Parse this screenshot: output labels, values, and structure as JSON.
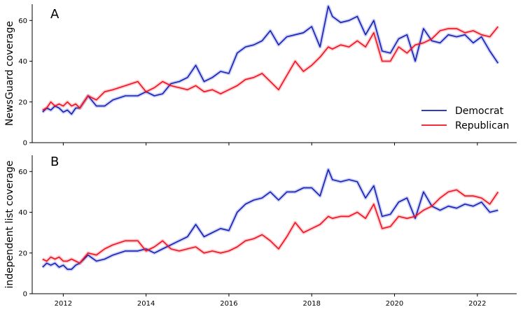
{
  "chart_data": [
    {
      "type": "line",
      "panel_label": "A",
      "ylabel": "NewsGuard coverage",
      "xlabel": "",
      "xlim": [
        2011.25,
        2022.95
      ],
      "ylim": [
        0,
        68
      ],
      "yticks": [
        0,
        20,
        40,
        60
      ],
      "xticks": [
        2012,
        2014,
        2016,
        2018,
        2020,
        2022
      ],
      "show_xtick_labels": false,
      "grid": false,
      "legend": {
        "placement": "right",
        "entries": [
          "Democrat",
          "Republican"
        ]
      },
      "series": [
        {
          "name": "Democrat",
          "color": "#1420b4",
          "x": [
            2011.5,
            2011.6,
            2011.7,
            2011.8,
            2011.9,
            2012.0,
            2012.1,
            2012.2,
            2012.3,
            2012.4,
            2012.6,
            2012.8,
            2013.0,
            2013.2,
            2013.5,
            2013.8,
            2014.0,
            2014.2,
            2014.4,
            2014.6,
            2014.8,
            2015.0,
            2015.2,
            2015.4,
            2015.6,
            2015.8,
            2016.0,
            2016.2,
            2016.4,
            2016.6,
            2016.8,
            2017.0,
            2017.2,
            2017.4,
            2017.6,
            2017.8,
            2018.0,
            2018.2,
            2018.4,
            2018.5,
            2018.7,
            2018.9,
            2019.1,
            2019.3,
            2019.5,
            2019.7,
            2019.9,
            2020.1,
            2020.3,
            2020.5,
            2020.7,
            2020.9,
            2021.1,
            2021.3,
            2021.5,
            2021.7,
            2021.9,
            2022.1,
            2022.3,
            2022.5
          ],
          "values": [
            15,
            17,
            16,
            18,
            17,
            15,
            16,
            14,
            17,
            17,
            23,
            18,
            18,
            21,
            23,
            23,
            25,
            23,
            24,
            29,
            30,
            32,
            38,
            30,
            32,
            35,
            34,
            44,
            47,
            48,
            50,
            55,
            48,
            52,
            53,
            54,
            57,
            47,
            67,
            62,
            59,
            60,
            62,
            53,
            60,
            45,
            44,
            51,
            53,
            40,
            56,
            50,
            49,
            53,
            52,
            53,
            49,
            52,
            45,
            39
          ]
        },
        {
          "name": "Republican",
          "color": "#f01020",
          "x": [
            2011.5,
            2011.6,
            2011.7,
            2011.8,
            2011.9,
            2012.0,
            2012.1,
            2012.2,
            2012.3,
            2012.4,
            2012.6,
            2012.8,
            2013.0,
            2013.2,
            2013.5,
            2013.8,
            2014.0,
            2014.2,
            2014.4,
            2014.6,
            2014.8,
            2015.0,
            2015.2,
            2015.4,
            2015.6,
            2015.8,
            2016.0,
            2016.2,
            2016.4,
            2016.6,
            2016.8,
            2017.0,
            2017.2,
            2017.4,
            2017.6,
            2017.8,
            2018.0,
            2018.2,
            2018.4,
            2018.5,
            2018.7,
            2018.9,
            2019.1,
            2019.3,
            2019.5,
            2019.7,
            2019.9,
            2020.1,
            2020.3,
            2020.5,
            2020.7,
            2020.9,
            2021.1,
            2021.3,
            2021.5,
            2021.7,
            2021.9,
            2022.1,
            2022.3,
            2022.5
          ],
          "values": [
            16,
            17,
            20,
            18,
            19,
            18,
            20,
            18,
            19,
            17,
            23,
            21,
            25,
            26,
            28,
            30,
            25,
            27,
            30,
            28,
            27,
            26,
            28,
            25,
            26,
            24,
            26,
            28,
            31,
            32,
            34,
            30,
            26,
            33,
            40,
            35,
            38,
            42,
            47,
            46,
            48,
            47,
            50,
            47,
            54,
            40,
            40,
            47,
            44,
            48,
            49,
            51,
            55,
            56,
            56,
            54,
            55,
            53,
            52,
            57
          ]
        }
      ]
    },
    {
      "type": "line",
      "panel_label": "B",
      "ylabel": "independent list coverage",
      "xlabel": "",
      "xlim": [
        2011.25,
        2022.95
      ],
      "ylim": [
        0,
        68
      ],
      "yticks": [
        0,
        20,
        40,
        60
      ],
      "xticks": [
        2012,
        2014,
        2016,
        2018,
        2020,
        2022
      ],
      "xtick_labels": [
        "2012",
        "2014",
        "2016",
        "2018",
        "2020",
        "2022"
      ],
      "grid": false,
      "series": [
        {
          "name": "Democrat",
          "color": "#1420b4",
          "x": [
            2011.5,
            2011.6,
            2011.7,
            2011.8,
            2011.9,
            2012.0,
            2012.1,
            2012.2,
            2012.3,
            2012.4,
            2012.6,
            2012.8,
            2013.0,
            2013.2,
            2013.5,
            2013.8,
            2014.0,
            2014.2,
            2014.4,
            2014.6,
            2014.8,
            2015.0,
            2015.2,
            2015.4,
            2015.6,
            2015.8,
            2016.0,
            2016.2,
            2016.4,
            2016.6,
            2016.8,
            2017.0,
            2017.2,
            2017.4,
            2017.6,
            2017.8,
            2018.0,
            2018.2,
            2018.4,
            2018.5,
            2018.7,
            2018.9,
            2019.1,
            2019.3,
            2019.5,
            2019.7,
            2019.9,
            2020.1,
            2020.3,
            2020.5,
            2020.7,
            2020.9,
            2021.1,
            2021.3,
            2021.5,
            2021.7,
            2021.9,
            2022.1,
            2022.3,
            2022.5
          ],
          "values": [
            13,
            15,
            14,
            15,
            13,
            14,
            12,
            12,
            14,
            15,
            19,
            16,
            17,
            19,
            21,
            21,
            22,
            20,
            22,
            24,
            26,
            28,
            34,
            28,
            30,
            32,
            31,
            40,
            44,
            46,
            47,
            50,
            46,
            50,
            50,
            52,
            52,
            48,
            61,
            56,
            55,
            56,
            55,
            47,
            53,
            38,
            39,
            45,
            47,
            37,
            50,
            43,
            41,
            43,
            42,
            44,
            43,
            45,
            40,
            41
          ]
        },
        {
          "name": "Republican",
          "color": "#f01020",
          "x": [
            2011.5,
            2011.6,
            2011.7,
            2011.8,
            2011.9,
            2012.0,
            2012.1,
            2012.2,
            2012.3,
            2012.4,
            2012.6,
            2012.8,
            2013.0,
            2013.2,
            2013.5,
            2013.8,
            2014.0,
            2014.2,
            2014.4,
            2014.6,
            2014.8,
            2015.0,
            2015.2,
            2015.4,
            2015.6,
            2015.8,
            2016.0,
            2016.2,
            2016.4,
            2016.6,
            2016.8,
            2017.0,
            2017.2,
            2017.4,
            2017.6,
            2017.8,
            2018.0,
            2018.2,
            2018.4,
            2018.5,
            2018.7,
            2018.9,
            2019.1,
            2019.3,
            2019.5,
            2019.7,
            2019.9,
            2020.1,
            2020.3,
            2020.5,
            2020.7,
            2020.9,
            2021.1,
            2021.3,
            2021.5,
            2021.7,
            2021.9,
            2022.1,
            2022.3,
            2022.5
          ],
          "values": [
            17,
            16,
            18,
            17,
            18,
            16,
            16,
            17,
            16,
            15,
            20,
            19,
            22,
            24,
            26,
            26,
            21,
            23,
            26,
            22,
            21,
            22,
            23,
            20,
            21,
            20,
            21,
            23,
            26,
            27,
            29,
            26,
            22,
            28,
            35,
            30,
            32,
            34,
            38,
            37,
            38,
            38,
            40,
            37,
            44,
            32,
            33,
            38,
            37,
            38,
            41,
            43,
            47,
            50,
            51,
            48,
            48,
            47,
            44,
            50
          ]
        }
      ]
    }
  ]
}
